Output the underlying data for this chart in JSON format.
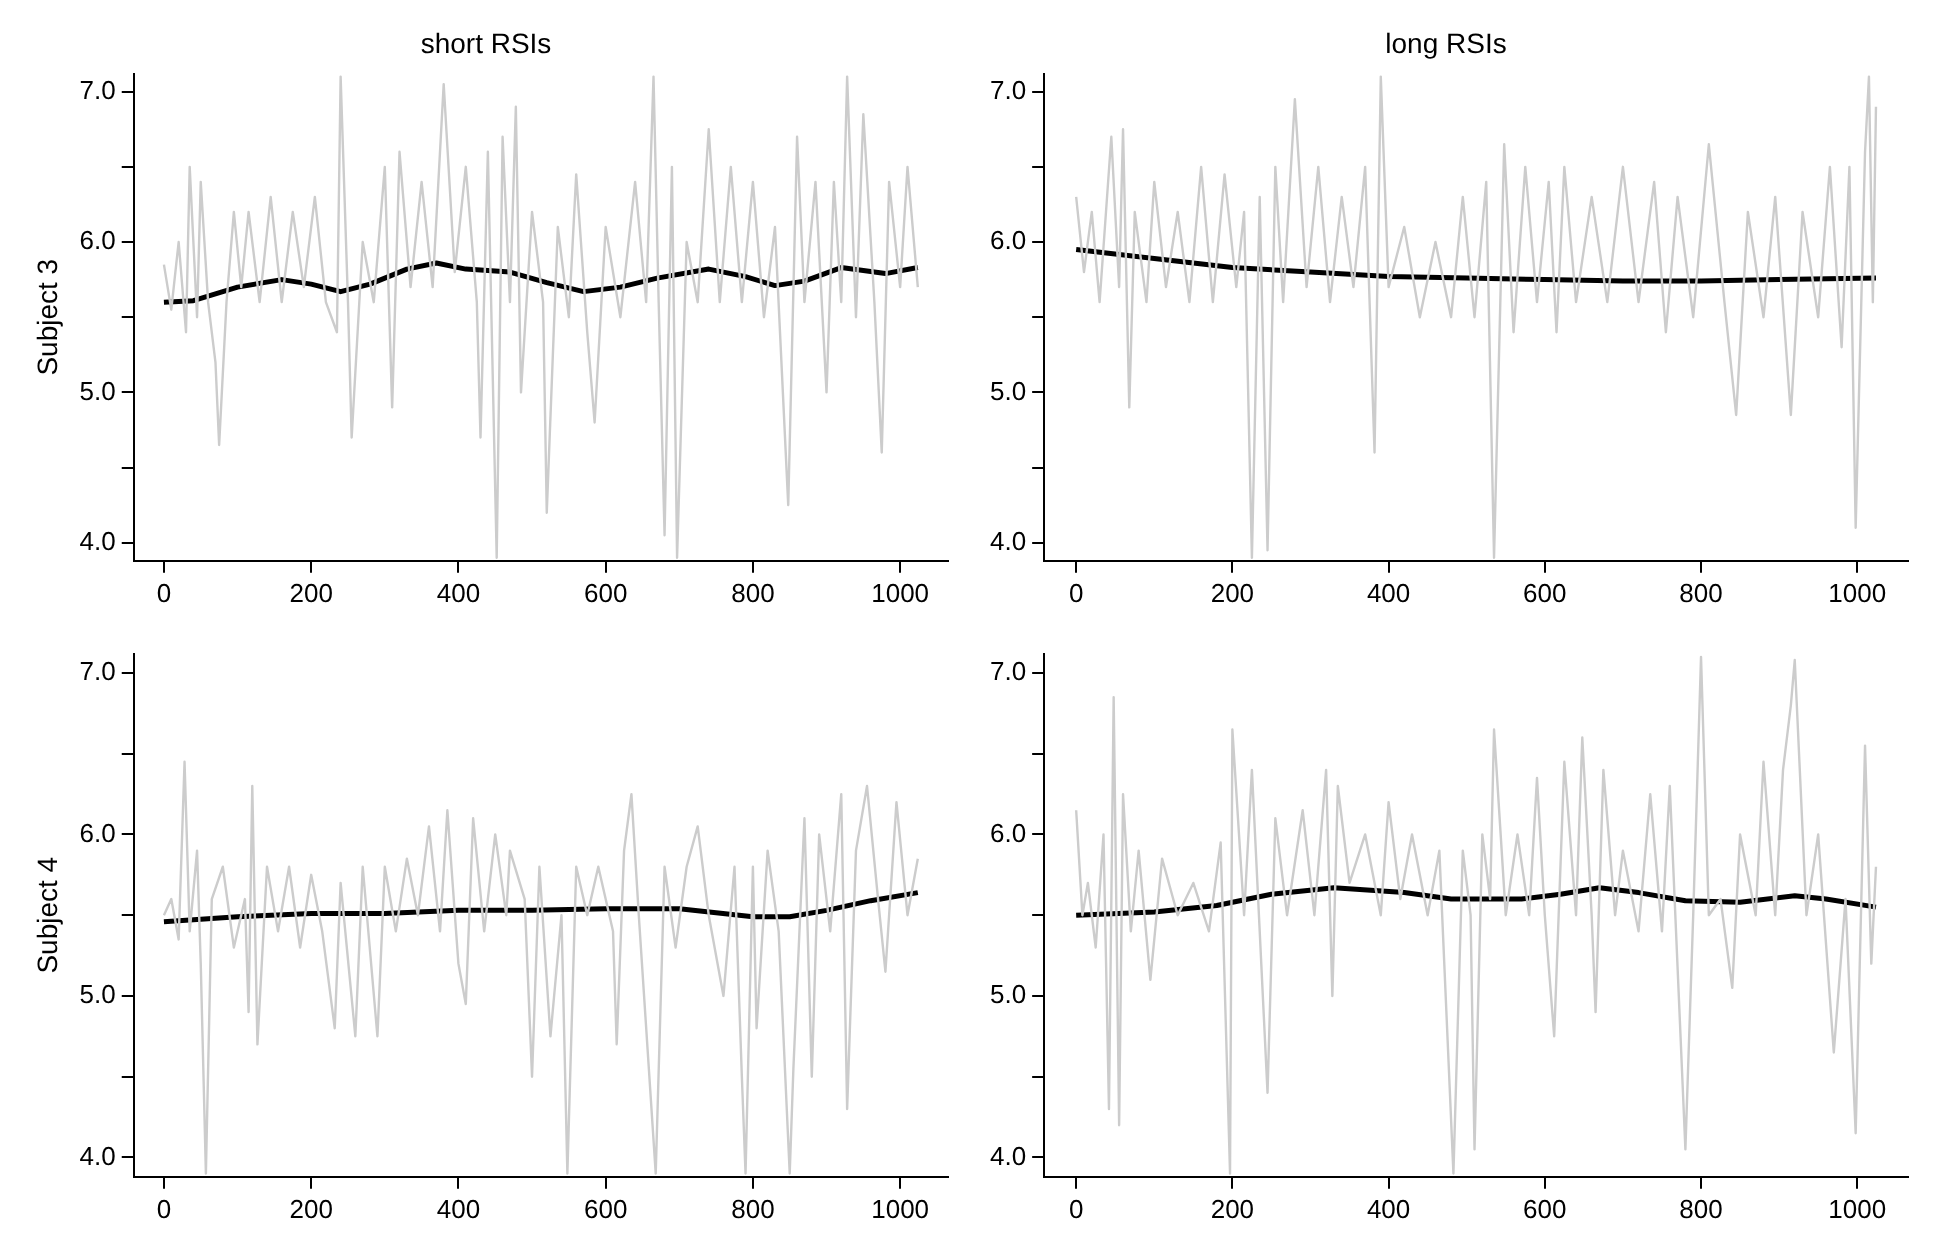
{
  "chart_data": [
    {
      "type": "line",
      "title": "short RSIs",
      "ylabel": "Subject 3",
      "xlim": [
        -41,
        1065
      ],
      "xticks": [
        0,
        200,
        400,
        600,
        800,
        1000
      ],
      "ylim": [
        3.88,
        7.12
      ],
      "yticks": [
        {
          "value": 4,
          "label": "4.0"
        },
        {
          "value": 4.5,
          "label": null
        },
        {
          "value": 5,
          "label": "5.0"
        },
        {
          "value": 5.5,
          "label": null
        },
        {
          "value": 6,
          "label": "6.0"
        },
        {
          "value": 6.5,
          "label": null
        },
        {
          "value": 7,
          "label": "7.0"
        }
      ],
      "series": [
        {
          "color": "#cccccc",
          "x": [
            0,
            10,
            20,
            30,
            35,
            45,
            50,
            60,
            70,
            75,
            85,
            95,
            105,
            115,
            130,
            145,
            160,
            175,
            190,
            205,
            220,
            235,
            240,
            250,
            255,
            270,
            285,
            300,
            310,
            320,
            335,
            350,
            365,
            380,
            395,
            410,
            425,
            430,
            440,
            452,
            460,
            470,
            478,
            485,
            500,
            515,
            520,
            535,
            550,
            560,
            575,
            585,
            600,
            620,
            640,
            655,
            665,
            672,
            680,
            690,
            697,
            710,
            725,
            740,
            755,
            770,
            785,
            800,
            815,
            830,
            848,
            860,
            870,
            885,
            900,
            910,
            920,
            928,
            940,
            950,
            965,
            975,
            985,
            1000,
            1010,
            1024
          ],
          "values": [
            5.85,
            5.55,
            6.0,
            5.4,
            6.5,
            5.5,
            6.4,
            5.6,
            5.2,
            4.65,
            5.6,
            6.2,
            5.7,
            6.2,
            5.6,
            6.3,
            5.6,
            6.2,
            5.7,
            6.3,
            5.6,
            5.4,
            7.1,
            5.6,
            4.7,
            6.0,
            5.6,
            6.5,
            4.9,
            6.6,
            5.7,
            6.4,
            5.7,
            7.05,
            5.8,
            6.5,
            5.6,
            4.7,
            6.6,
            3.9,
            6.7,
            5.6,
            6.9,
            5.0,
            6.2,
            5.6,
            4.2,
            6.1,
            5.5,
            6.45,
            5.4,
            4.8,
            6.1,
            5.5,
            6.4,
            5.6,
            7.1,
            5.6,
            4.05,
            6.5,
            3.9,
            6.0,
            5.6,
            6.75,
            5.6,
            6.5,
            5.6,
            6.4,
            5.5,
            6.1,
            4.25,
            6.7,
            5.6,
            6.4,
            5.0,
            6.4,
            5.6,
            7.1,
            5.5,
            6.85,
            5.6,
            4.6,
            6.4,
            5.7,
            6.5,
            5.7
          ]
        },
        {
          "color": "#000000",
          "x": [
            0,
            40,
            100,
            160,
            200,
            240,
            280,
            330,
            370,
            410,
            470,
            520,
            570,
            620,
            670,
            740,
            790,
            830,
            870,
            920,
            980,
            1024
          ],
          "values": [
            5.6,
            5.61,
            5.7,
            5.75,
            5.72,
            5.67,
            5.72,
            5.82,
            5.86,
            5.82,
            5.8,
            5.73,
            5.67,
            5.7,
            5.76,
            5.82,
            5.77,
            5.71,
            5.74,
            5.83,
            5.79,
            5.83
          ]
        }
      ]
    },
    {
      "type": "line",
      "title": "long RSIs",
      "xlim": [
        -41,
        1065
      ],
      "xticks": [
        0,
        200,
        400,
        600,
        800,
        1000
      ],
      "ylim": [
        3.88,
        7.12
      ],
      "yticks": [
        {
          "value": 4,
          "label": "4.0"
        },
        {
          "value": 4.5,
          "label": null
        },
        {
          "value": 5,
          "label": "5.0"
        },
        {
          "value": 5.5,
          "label": null
        },
        {
          "value": 6,
          "label": "6.0"
        },
        {
          "value": 6.5,
          "label": null
        },
        {
          "value": 7,
          "label": "7.0"
        }
      ],
      "series": [
        {
          "color": "#cccccc",
          "x": [
            0,
            10,
            20,
            30,
            45,
            55,
            60,
            68,
            75,
            90,
            100,
            115,
            130,
            145,
            160,
            175,
            190,
            205,
            215,
            225,
            235,
            245,
            255,
            265,
            280,
            295,
            310,
            325,
            340,
            355,
            370,
            382,
            390,
            400,
            420,
            440,
            460,
            480,
            495,
            510,
            525,
            535,
            548,
            560,
            575,
            590,
            605,
            615,
            625,
            640,
            660,
            680,
            700,
            720,
            740,
            755,
            770,
            790,
            810,
            830,
            840,
            845,
            860,
            880,
            895,
            915,
            930,
            950,
            965,
            980,
            990,
            998,
            1010,
            1015,
            1020,
            1024
          ],
          "values": [
            6.3,
            5.8,
            6.2,
            5.6,
            6.7,
            5.7,
            6.75,
            4.9,
            6.2,
            5.6,
            6.4,
            5.7,
            6.2,
            5.6,
            6.5,
            5.6,
            6.45,
            5.7,
            6.2,
            3.9,
            6.3,
            3.95,
            6.5,
            5.6,
            6.95,
            5.7,
            6.5,
            5.6,
            6.3,
            5.7,
            6.5,
            4.6,
            7.1,
            5.7,
            6.1,
            5.5,
            6.0,
            5.5,
            6.3,
            5.5,
            6.4,
            3.9,
            6.65,
            5.4,
            6.5,
            5.6,
            6.4,
            5.4,
            6.5,
            5.6,
            6.3,
            5.6,
            6.5,
            5.6,
            6.4,
            5.4,
            6.3,
            5.5,
            6.65,
            5.6,
            5.1,
            4.85,
            6.2,
            5.5,
            6.3,
            4.85,
            6.2,
            5.5,
            6.5,
            5.3,
            6.5,
            4.1,
            6.6,
            7.1,
            5.6,
            6.9
          ]
        },
        {
          "color": "#000000",
          "x": [
            0,
            100,
            200,
            300,
            400,
            500,
            600,
            700,
            800,
            900,
            1024
          ],
          "values": [
            5.95,
            5.89,
            5.83,
            5.8,
            5.77,
            5.76,
            5.75,
            5.74,
            5.74,
            5.75,
            5.76
          ]
        }
      ]
    },
    {
      "type": "line",
      "ylabel": "Subject 4",
      "xlim": [
        -41,
        1065
      ],
      "xticks": [
        0,
        200,
        400,
        600,
        800,
        1000
      ],
      "ylim": [
        3.88,
        7.12
      ],
      "yticks": [
        {
          "value": 4,
          "label": "4.0"
        },
        {
          "value": 4.5,
          "label": null
        },
        {
          "value": 5,
          "label": "5.0"
        },
        {
          "value": 5.5,
          "label": null
        },
        {
          "value": 6,
          "label": "6.0"
        },
        {
          "value": 6.5,
          "label": null
        },
        {
          "value": 7,
          "label": "7.0"
        }
      ],
      "series": [
        {
          "color": "#cccccc",
          "x": [
            0,
            10,
            20,
            28,
            35,
            45,
            50,
            57,
            65,
            80,
            95,
            110,
            115,
            120,
            127,
            140,
            155,
            170,
            185,
            200,
            215,
            232,
            240,
            260,
            270,
            290,
            300,
            315,
            330,
            345,
            360,
            375,
            385,
            400,
            410,
            420,
            435,
            450,
            465,
            470,
            490,
            500,
            510,
            525,
            540,
            548,
            560,
            575,
            590,
            610,
            615,
            625,
            635,
            645,
            668,
            680,
            695,
            710,
            725,
            740,
            760,
            775,
            785,
            790,
            800,
            805,
            820,
            835,
            850,
            855,
            870,
            880,
            890,
            905,
            920,
            928,
            940,
            955,
            970,
            980,
            995,
            1010,
            1024
          ],
          "values": [
            5.5,
            5.6,
            5.35,
            6.45,
            5.4,
            5.9,
            5.2,
            3.9,
            5.6,
            5.8,
            5.3,
            5.6,
            4.9,
            6.3,
            4.7,
            5.8,
            5.4,
            5.8,
            5.3,
            5.75,
            5.4,
            4.8,
            5.7,
            4.75,
            5.8,
            4.75,
            5.8,
            5.4,
            5.85,
            5.5,
            6.05,
            5.4,
            6.15,
            5.2,
            4.95,
            6.1,
            5.4,
            6.0,
            5.5,
            5.9,
            5.6,
            4.5,
            5.8,
            4.75,
            5.5,
            3.9,
            5.8,
            5.5,
            5.8,
            5.4,
            4.7,
            5.9,
            6.25,
            5.5,
            3.9,
            5.8,
            5.3,
            5.8,
            6.05,
            5.5,
            5.0,
            5.8,
            4.5,
            3.9,
            5.8,
            4.8,
            5.9,
            5.4,
            3.9,
            4.55,
            6.1,
            4.5,
            6.0,
            5.4,
            6.25,
            4.3,
            5.9,
            6.3,
            5.6,
            5.15,
            6.2,
            5.5,
            5.85
          ]
        },
        {
          "color": "#000000",
          "x": [
            0,
            100,
            200,
            300,
            400,
            500,
            600,
            700,
            800,
            850,
            900,
            960,
            1024
          ],
          "values": [
            5.46,
            5.49,
            5.51,
            5.51,
            5.53,
            5.53,
            5.54,
            5.54,
            5.49,
            5.49,
            5.53,
            5.59,
            5.64
          ]
        }
      ]
    },
    {
      "type": "line",
      "xlim": [
        -41,
        1065
      ],
      "xticks": [
        0,
        200,
        400,
        600,
        800,
        1000
      ],
      "ylim": [
        3.88,
        7.12
      ],
      "yticks": [
        {
          "value": 4,
          "label": "4.0"
        },
        {
          "value": 4.5,
          "label": null
        },
        {
          "value": 5,
          "label": "5.0"
        },
        {
          "value": 5.5,
          "label": null
        },
        {
          "value": 6,
          "label": "6.0"
        },
        {
          "value": 6.5,
          "label": null
        },
        {
          "value": 7,
          "label": "7.0"
        }
      ],
      "series": [
        {
          "color": "#cccccc",
          "x": [
            0,
            8,
            15,
            25,
            35,
            42,
            48,
            55,
            60,
            70,
            80,
            95,
            110,
            130,
            150,
            170,
            185,
            197,
            200,
            215,
            225,
            245,
            255,
            270,
            290,
            305,
            320,
            328,
            335,
            350,
            370,
            390,
            400,
            415,
            430,
            450,
            465,
            483,
            495,
            505,
            510,
            520,
            530,
            535,
            550,
            565,
            580,
            590,
            600,
            612,
            625,
            640,
            648,
            660,
            665,
            675,
            690,
            700,
            720,
            735,
            750,
            760,
            780,
            790,
            800,
            810,
            825,
            840,
            850,
            870,
            880,
            895,
            905,
            915,
            920,
            935,
            950,
            970,
            985,
            998,
            1010,
            1018,
            1024
          ],
          "values": [
            6.15,
            5.5,
            5.7,
            5.3,
            6.0,
            4.3,
            6.85,
            4.2,
            6.25,
            5.4,
            5.9,
            5.1,
            5.85,
            5.5,
            5.7,
            5.4,
            5.95,
            3.9,
            6.65,
            5.5,
            6.4,
            4.4,
            6.1,
            5.5,
            6.15,
            5.5,
            6.4,
            5.0,
            6.3,
            5.7,
            6.0,
            5.5,
            6.2,
            5.6,
            6.0,
            5.5,
            5.9,
            3.9,
            5.9,
            5.5,
            4.05,
            6.0,
            5.6,
            6.65,
            5.5,
            6.0,
            5.5,
            6.35,
            5.5,
            4.75,
            6.45,
            5.5,
            6.6,
            5.5,
            4.9,
            6.4,
            5.5,
            5.9,
            5.4,
            6.25,
            5.4,
            6.3,
            4.05,
            5.5,
            7.1,
            5.5,
            5.6,
            5.05,
            6.0,
            5.5,
            6.45,
            5.5,
            6.4,
            6.8,
            7.08,
            5.5,
            6.0,
            4.65,
            5.6,
            4.15,
            6.55,
            5.2,
            5.8
          ]
        },
        {
          "color": "#000000",
          "x": [
            0,
            100,
            180,
            250,
            330,
            420,
            480,
            570,
            620,
            670,
            720,
            780,
            850,
            920,
            960,
            1024
          ],
          "values": [
            5.5,
            5.52,
            5.56,
            5.63,
            5.67,
            5.64,
            5.6,
            5.6,
            5.63,
            5.67,
            5.64,
            5.59,
            5.58,
            5.62,
            5.6,
            5.55
          ]
        }
      ]
    }
  ]
}
